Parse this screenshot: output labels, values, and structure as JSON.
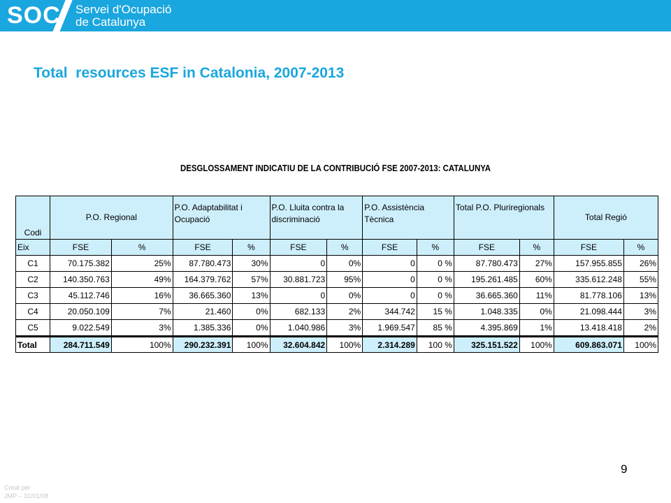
{
  "header": {
    "logo": "SOC",
    "brand_line1": "Servei d'Ocupació",
    "brand_line2": "de Catalunya",
    "bg_color": "#1aa6de"
  },
  "slide_title": "Total  resources ESF in Catalonia, 2007-2013",
  "table_title": "DESGLOSSAMENT INDICATIU DE LA CONTRIBUCIÓ FSE 2007-2013: CATALUNYA",
  "table": {
    "codi_label": "Codi",
    "eix_label": "Eix",
    "groups": [
      "P.O. Regional",
      "P.O.   Adaptabilitat   i Ocupació",
      "P.O. Lluita contra la discriminació",
      "P.O.   Assistència Tècnica",
      "Total   P.O. Pluriregionals",
      "Total Regió"
    ],
    "sub_fse": "FSE",
    "sub_pct": "%",
    "rows": [
      {
        "eix": "C1",
        "cells": [
          "70.175.382",
          "25%",
          "87.780.473",
          "30%",
          "0",
          "0%",
          "0",
          "0 %",
          "87.780.473",
          "27%",
          "157.955.855",
          "26%"
        ]
      },
      {
        "eix": "C2",
        "cells": [
          "140.350.763",
          "49%",
          "164.379.762",
          "57%",
          "30.881.723",
          "95%",
          "0",
          "0 %",
          "195.261.485",
          "60%",
          "335.612.248",
          "55%"
        ]
      },
      {
        "eix": "C3",
        "cells": [
          "45.112.746",
          "16%",
          "36.665.360",
          "13%",
          "0",
          "0%",
          "0",
          "0 %",
          "36.665.360",
          "11%",
          "81.778.106",
          "13%"
        ]
      },
      {
        "eix": "C4",
        "cells": [
          "20.050.109",
          "7%",
          "21.460",
          "0%",
          "682.133",
          "2%",
          "344.742",
          "15 %",
          "1.048.335",
          "0%",
          "21.098.444",
          "3%"
        ]
      },
      {
        "eix": "C5",
        "cells": [
          "9.022.549",
          "3%",
          "1.385.336",
          "0%",
          "1.040.986",
          "3%",
          "1.969.547",
          "85 %",
          "4.395.869",
          "1%",
          "13.418.418",
          "2%"
        ]
      }
    ],
    "total": {
      "label": "Total",
      "cells": [
        "284.711.549",
        "100%",
        "290.232.391",
        "100%",
        "32.604.842",
        "100%",
        "2.314.289",
        "100 %",
        "325.151.522",
        "100%",
        "609.863.071",
        "100%"
      ]
    }
  },
  "page_number": "9",
  "footer": {
    "line1": "Creat per",
    "line2": "JMP – 31/01/08"
  }
}
